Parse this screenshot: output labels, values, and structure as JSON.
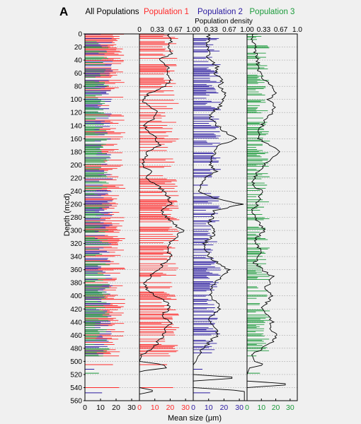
{
  "panel_label": "A",
  "chart_data": {
    "type": "bar",
    "ylabel": "Depth (mcd)",
    "xlabel": "Mean size (μm)",
    "top_axis_label": "Population density",
    "ylim": [
      0,
      560
    ],
    "y_ticks": [
      0,
      20,
      40,
      60,
      80,
      100,
      120,
      140,
      160,
      180,
      200,
      220,
      240,
      260,
      280,
      300,
      320,
      340,
      360,
      380,
      400,
      420,
      440,
      460,
      480,
      500,
      520,
      540,
      560
    ],
    "colors": {
      "pop1": "#ff2a2a",
      "pop2": "#2a1aa0",
      "pop3": "#1a9a3a",
      "density": "#000000"
    },
    "panels": [
      {
        "id": "all",
        "title": "All Populations",
        "title_color": "#000000",
        "xlim": [
          0,
          35
        ],
        "x_ticks": [
          "0",
          "10",
          "20",
          "30"
        ],
        "x_tick_color": "#000000",
        "density_ticks": []
      },
      {
        "id": "pop1",
        "title": "Population 1",
        "title_color": "#ff2a2a",
        "xlim": [
          0,
          35
        ],
        "x_ticks": [
          "0",
          "10",
          "20",
          "30"
        ],
        "x_tick_color": "#ff2a2a",
        "density_ticks": [
          "0",
          "0.33",
          "0.67",
          "1.00"
        ]
      },
      {
        "id": "pop2",
        "title": "Population 2",
        "title_color": "#2a1aa0",
        "xlim": [
          0,
          35
        ],
        "x_ticks": [
          "0",
          "10",
          "20",
          "30"
        ],
        "x_tick_color": "#2a1aa0",
        "density_ticks": [
          "0.33",
          "0.67",
          "1.00"
        ]
      },
      {
        "id": "pop3",
        "title": "Population 3",
        "title_color": "#1a9a3a",
        "xlim": [
          0,
          35
        ],
        "x_ticks": [
          "0",
          "10",
          "20",
          "30"
        ],
        "x_tick_color": "#1a9a3a",
        "density_ticks": [
          "0.33",
          "0.67",
          "1.0"
        ]
      }
    ],
    "density_profile": {
      "pop1": [
        [
          0,
          0.55
        ],
        [
          10,
          0.6
        ],
        [
          20,
          0.5
        ],
        [
          30,
          0.62
        ],
        [
          40,
          0.35
        ],
        [
          50,
          0.55
        ],
        [
          60,
          0.5
        ],
        [
          70,
          0.6
        ],
        [
          80,
          0.45
        ],
        [
          90,
          0.2
        ],
        [
          100,
          0.05
        ],
        [
          110,
          0.15
        ],
        [
          120,
          0.35
        ],
        [
          130,
          0.25
        ],
        [
          140,
          0.1
        ],
        [
          150,
          0.2
        ],
        [
          160,
          0.3
        ],
        [
          170,
          0.4
        ],
        [
          180,
          0.15
        ],
        [
          190,
          0.1
        ],
        [
          200,
          0.05
        ],
        [
          210,
          0.2
        ],
        [
          220,
          0.15
        ],
        [
          230,
          0.3
        ],
        [
          240,
          0.45
        ],
        [
          250,
          0.55
        ],
        [
          260,
          0.6
        ],
        [
          270,
          0.4
        ],
        [
          280,
          0.5
        ],
        [
          290,
          0.65
        ],
        [
          300,
          0.8
        ],
        [
          310,
          0.7
        ],
        [
          320,
          0.55
        ],
        [
          330,
          0.5
        ],
        [
          340,
          0.6
        ],
        [
          350,
          0.45
        ],
        [
          360,
          0.35
        ],
        [
          370,
          0.2
        ],
        [
          380,
          0.1
        ],
        [
          390,
          0.15
        ],
        [
          400,
          0.3
        ],
        [
          410,
          0.5
        ],
        [
          420,
          0.55
        ],
        [
          430,
          0.4
        ],
        [
          440,
          0.6
        ],
        [
          450,
          0.5
        ],
        [
          460,
          0.45
        ],
        [
          470,
          0.35
        ],
        [
          480,
          0.25
        ],
        [
          490,
          0.05
        ],
        [
          500,
          0.0
        ],
        [
          505,
          0.45
        ],
        [
          510,
          0.5
        ],
        [
          515,
          0.0
        ],
        [
          540,
          0.0
        ],
        [
          545,
          0.3
        ],
        [
          550,
          0.0
        ],
        [
          560,
          0.0
        ]
      ],
      "pop2": [
        [
          0,
          0.3
        ],
        [
          20,
          0.25
        ],
        [
          40,
          0.3
        ],
        [
          50,
          0.45
        ],
        [
          60,
          0.4
        ],
        [
          70,
          0.55
        ],
        [
          80,
          0.5
        ],
        [
          90,
          0.6
        ],
        [
          100,
          0.55
        ],
        [
          110,
          0.5
        ],
        [
          120,
          0.35
        ],
        [
          130,
          0.3
        ],
        [
          140,
          0.45
        ],
        [
          150,
          0.6
        ],
        [
          160,
          0.8
        ],
        [
          170,
          0.5
        ],
        [
          180,
          0.4
        ],
        [
          190,
          0.35
        ],
        [
          200,
          0.3
        ],
        [
          210,
          0.45
        ],
        [
          220,
          0.2
        ],
        [
          230,
          0.15
        ],
        [
          240,
          0.1
        ],
        [
          250,
          0.35
        ],
        [
          260,
          0.9
        ],
        [
          270,
          0.4
        ],
        [
          280,
          0.35
        ],
        [
          290,
          0.3
        ],
        [
          300,
          0.4
        ],
        [
          310,
          0.35
        ],
        [
          320,
          0.2
        ],
        [
          330,
          0.25
        ],
        [
          340,
          0.3
        ],
        [
          350,
          0.45
        ],
        [
          360,
          0.65
        ],
        [
          370,
          0.55
        ],
        [
          380,
          0.4
        ],
        [
          390,
          0.35
        ],
        [
          400,
          0.3
        ],
        [
          410,
          0.45
        ],
        [
          420,
          0.5
        ],
        [
          430,
          0.35
        ],
        [
          440,
          0.3
        ],
        [
          450,
          0.4
        ],
        [
          460,
          0.45
        ],
        [
          470,
          0.3
        ],
        [
          480,
          0.2
        ],
        [
          490,
          0.1
        ],
        [
          500,
          0.05
        ],
        [
          505,
          0.0
        ],
        [
          520,
          0.0
        ],
        [
          525,
          0.9
        ],
        [
          530,
          0.0
        ],
        [
          540,
          0.0
        ],
        [
          545,
          0.95
        ],
        [
          560,
          0.95
        ]
      ],
      "pop3": [
        [
          0,
          0.1
        ],
        [
          20,
          0.15
        ],
        [
          40,
          0.2
        ],
        [
          60,
          0.25
        ],
        [
          70,
          0.35
        ],
        [
          80,
          0.5
        ],
        [
          90,
          0.6
        ],
        [
          100,
          0.4
        ],
        [
          110,
          0.55
        ],
        [
          120,
          0.5
        ],
        [
          130,
          0.35
        ],
        [
          140,
          0.3
        ],
        [
          150,
          0.2
        ],
        [
          160,
          0.25
        ],
        [
          170,
          0.45
        ],
        [
          180,
          0.65
        ],
        [
          190,
          0.5
        ],
        [
          200,
          0.35
        ],
        [
          210,
          0.2
        ],
        [
          220,
          0.15
        ],
        [
          230,
          0.1
        ],
        [
          240,
          0.3
        ],
        [
          250,
          0.25
        ],
        [
          260,
          0.2
        ],
        [
          270,
          0.1
        ],
        [
          280,
          0.15
        ],
        [
          290,
          0.25
        ],
        [
          300,
          0.35
        ],
        [
          310,
          0.2
        ],
        [
          320,
          0.15
        ],
        [
          330,
          0.3
        ],
        [
          340,
          0.25
        ],
        [
          350,
          0.15
        ],
        [
          360,
          0.3
        ],
        [
          370,
          0.5
        ],
        [
          380,
          0.45
        ],
        [
          390,
          0.35
        ],
        [
          400,
          0.5
        ],
        [
          410,
          0.4
        ],
        [
          420,
          0.3
        ],
        [
          430,
          0.4
        ],
        [
          440,
          0.5
        ],
        [
          450,
          0.45
        ],
        [
          460,
          0.6
        ],
        [
          470,
          0.5
        ],
        [
          480,
          0.3
        ],
        [
          490,
          0.1
        ],
        [
          500,
          0.15
        ],
        [
          505,
          0.35
        ],
        [
          510,
          0.05
        ],
        [
          520,
          0.0
        ],
        [
          530,
          0.0
        ],
        [
          535,
          0.95
        ],
        [
          540,
          0.0
        ],
        [
          560,
          0.0
        ]
      ]
    }
  }
}
